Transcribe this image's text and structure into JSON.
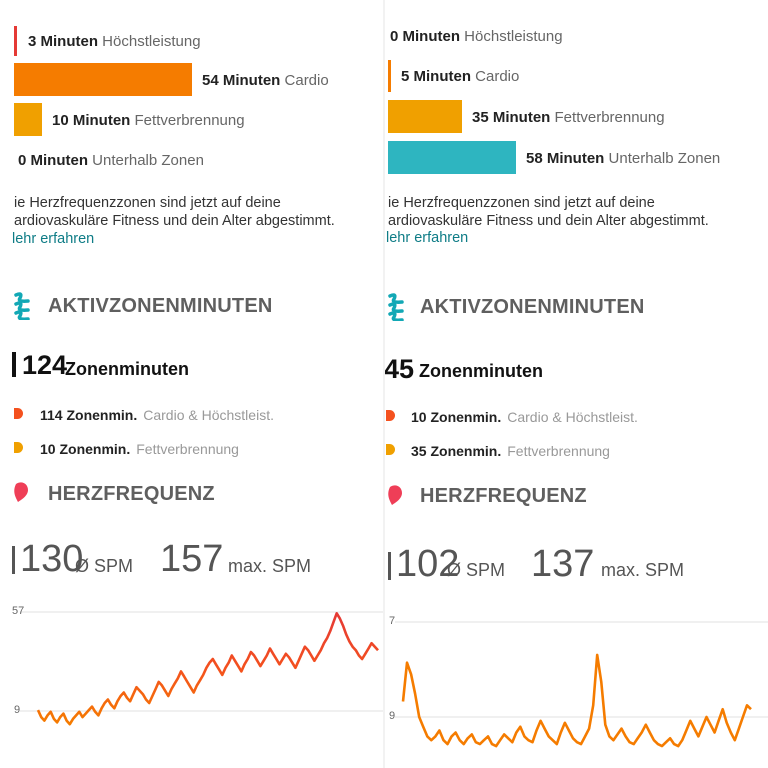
{
  "left": {
    "zones": [
      {
        "value": "3 Minuten",
        "name": "Höchstleistung",
        "color": "#e53935"
      },
      {
        "value": "54 Minuten",
        "name": "Cardio",
        "color": "#f57c00"
      },
      {
        "value": "10 Minuten",
        "name": "Fettverbrennung",
        "color": "#f0a000"
      },
      {
        "value": "0 Minuten",
        "name": "Unterhalb Zonen",
        "color": "#2eb5c0"
      }
    ],
    "note": {
      "line1": "ie Herzfrequenzzonen sind jetzt auf deine",
      "line2": "ardiovaskuläre Fitness und dein Alter abgestimmt.",
      "link": "lehr erfahren"
    },
    "azm": {
      "title": "AKTIVZONENMINUTEN",
      "total": "124",
      "total_label": "Zonenminuten",
      "rows": [
        {
          "value": "114 Zonenmin.",
          "name": "Cardio & Höchstleist.",
          "color": "#f4511e"
        },
        {
          "value": "10 Zonenmin.",
          "name": "Fettverbrennung",
          "color": "#f0a000"
        }
      ]
    },
    "hr": {
      "title": "HERZFREQUENZ",
      "avg": "130",
      "avg_unit": "Ø SPM",
      "max": "157",
      "max_unit": "max. SPM"
    },
    "chart": {
      "top_tick": "57",
      "bottom_tick": "9"
    }
  },
  "right": {
    "zones": [
      {
        "value": "0 Minuten",
        "name": "Höchstleistung",
        "color": "#e53935"
      },
      {
        "value": "5 Minuten",
        "name": "Cardio",
        "color": "#f57c00"
      },
      {
        "value": "35 Minuten",
        "name": "Fettverbrennung",
        "color": "#f0a000"
      },
      {
        "value": "58 Minuten",
        "name": "Unterhalb Zonen",
        "color": "#2eb5c0"
      }
    ],
    "note": {
      "line1": "ie Herzfrequenzzonen sind jetzt auf deine",
      "line2": "ardiovaskuläre Fitness und dein Alter abgestimmt.",
      "link": "lehr erfahren"
    },
    "azm": {
      "title": "AKTIVZONENMINUTEN",
      "total": "45",
      "total_label": "Zonenminuten",
      "rows": [
        {
          "value": "10 Zonenmin.",
          "name": "Cardio & Höchstleist.",
          "color": "#f4511e"
        },
        {
          "value": "35 Zonenmin.",
          "name": "Fettverbrennung",
          "color": "#f0a000"
        }
      ]
    },
    "hr": {
      "title": "HERZFREQUENZ",
      "avg": "102",
      "avg_unit": "Ø SPM",
      "max": "137",
      "max_unit": "max. SPM"
    },
    "chart": {
      "top_tick": "7",
      "bottom_tick": "9"
    }
  },
  "chart_data": [
    {
      "type": "line",
      "title": "",
      "xlabel": "",
      "ylabel": "",
      "ylim": [
        85,
        160
      ],
      "series": [
        {
          "values": [
            102,
            98,
            96,
            99,
            101,
            97,
            95,
            98,
            100,
            96,
            94,
            97,
            99,
            101,
            98,
            100,
            102,
            104,
            101,
            99,
            103,
            106,
            108,
            105,
            103,
            107,
            110,
            112,
            109,
            107,
            111,
            115,
            113,
            111,
            108,
            106,
            110,
            114,
            118,
            116,
            113,
            110,
            114,
            117,
            120,
            124,
            121,
            118,
            115,
            112,
            116,
            119,
            122,
            126,
            129,
            131,
            128,
            125,
            122,
            126,
            129,
            133,
            130,
            127,
            124,
            128,
            131,
            135,
            133,
            130,
            127,
            130,
            133,
            137,
            134,
            131,
            128,
            131,
            134,
            132,
            129,
            126,
            130,
            134,
            138,
            136,
            133,
            130,
            133,
            136,
            140,
            143,
            147,
            152,
            157,
            154,
            150,
            145,
            141,
            138,
            136,
            133,
            131,
            134,
            137,
            140,
            138,
            136
          ]
        }
      ]
    },
    {
      "type": "line",
      "title": "",
      "xlabel": "",
      "ylabel": "",
      "ylim": [
        84,
        150
      ],
      "series": [
        {
          "values": [
            108,
            128,
            122,
            112,
            100,
            95,
            90,
            88,
            90,
            93,
            88,
            86,
            90,
            92,
            88,
            86,
            89,
            91,
            87,
            86,
            88,
            90,
            86,
            85,
            88,
            91,
            89,
            87,
            92,
            95,
            90,
            88,
            87,
            93,
            98,
            94,
            90,
            88,
            86,
            92,
            97,
            93,
            89,
            87,
            86,
            90,
            94,
            106,
            132,
            118,
            96,
            90,
            88,
            91,
            94,
            90,
            87,
            86,
            89,
            92,
            96,
            92,
            88,
            86,
            85,
            87,
            89,
            86,
            85,
            88,
            93,
            98,
            94,
            90,
            95,
            100,
            96,
            92,
            98,
            104,
            97,
            92,
            88,
            94,
            100,
            106,
            104
          ]
        }
      ]
    }
  ]
}
